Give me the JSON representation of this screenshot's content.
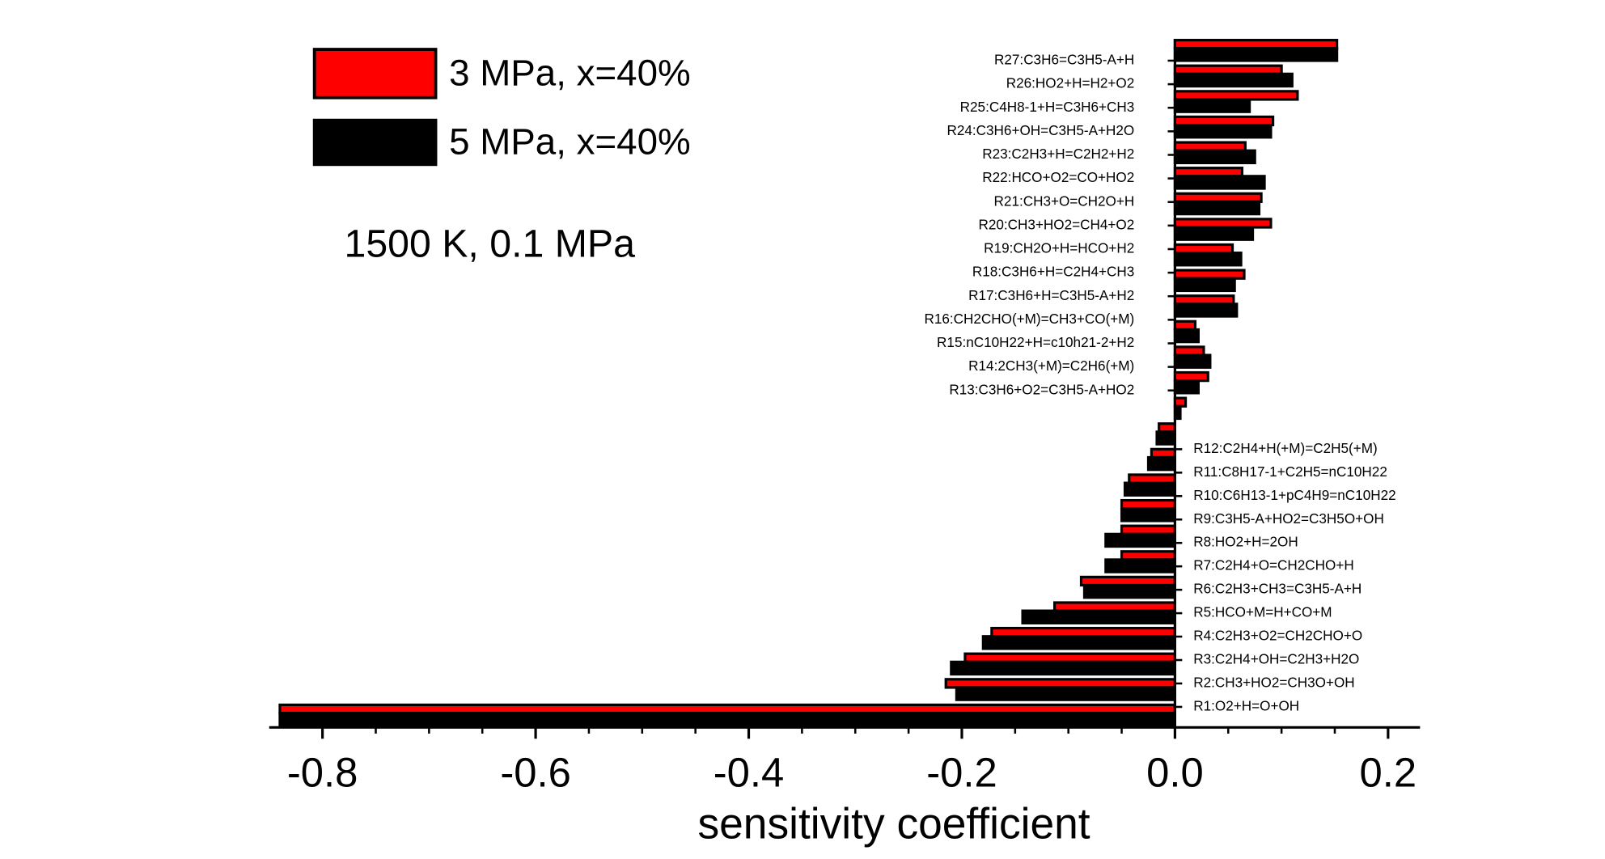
{
  "chart_data": {
    "type": "barh",
    "xlabel": "sensitivity coefficient",
    "annotation": "1500 K, 0.1 MPa",
    "categories": [
      "R1:O2+H=O+OH",
      "R2:CH3+HO2=CH3O+OH",
      "R3:C2H4+OH=C2H3+H2O",
      "R4:C2H3+O2=CH2CHO+O",
      "R5:HCO+M=H+CO+M",
      "R6:C2H3+CH3=C3H5-A+H",
      "R7:C2H4+O=CH2CHO+H",
      "R8:HO2+H=2OH",
      "R9:C3H5-A+HO2=C3H5O+OH",
      "R10:C6H13-1+pC4H9=nC10H22",
      "R11:C8H17-1+C2H5=nC10H22",
      "R12:C2H4+H(+M)=C2H5(+M)",
      "R13:C3H6+O2=C3H5-A+HO2",
      "R14:2CH3(+M)=C2H6(+M)",
      "R15:nC10H22+H=c10h21-2+H2",
      "R16:CH2CHO(+M)=CH3+CO(+M)",
      "R17:C3H6+H=C3H5-A+H2",
      "R18:C3H6+H=C2H4+CH3",
      "R19:CH2O+H=HCO+H2",
      "R20:CH3+HO2=CH4+O2",
      "R21:CH3+O=CH2O+H",
      "R22:HCO+O2=CO+HO2",
      "R23:C2H3+H=C2H2+H2",
      "R24:C3H6+OH=C3H5-A+H2O",
      "R25:C4H8-1+H=C3H6+CH3",
      "R26:HO2+H=H2+O2",
      "R27:C3H6=C3H5-A+H"
    ],
    "series": [
      {
        "name": "3 MPa, x=40%",
        "color": "#ff0000",
        "values": [
          -0.84,
          -0.215,
          -0.197,
          -0.172,
          -0.113,
          -0.088,
          -0.05,
          -0.05,
          -0.05,
          -0.043,
          -0.022,
          -0.015,
          0.01,
          0.031,
          0.027,
          0.019,
          0.055,
          0.065,
          0.054,
          0.09,
          0.081,
          0.063,
          0.066,
          0.092,
          0.115,
          0.1,
          0.152
        ]
      },
      {
        "name": "5 MPa, x=40%",
        "color": "#000000",
        "values": [
          -0.84,
          -0.205,
          -0.21,
          -0.18,
          -0.143,
          -0.085,
          -0.065,
          -0.065,
          -0.05,
          -0.047,
          -0.025,
          -0.017,
          0.005,
          0.022,
          0.033,
          0.022,
          0.058,
          0.056,
          0.062,
          0.073,
          0.079,
          0.084,
          0.075,
          0.09,
          0.07,
          0.11,
          0.152
        ]
      }
    ],
    "xlim": [
      -0.85,
      0.23
    ],
    "xticks": [
      -0.8,
      -0.6,
      -0.4,
      -0.2,
      {
        "value": 0,
        "label": "0.0"
      },
      0.2
    ]
  }
}
